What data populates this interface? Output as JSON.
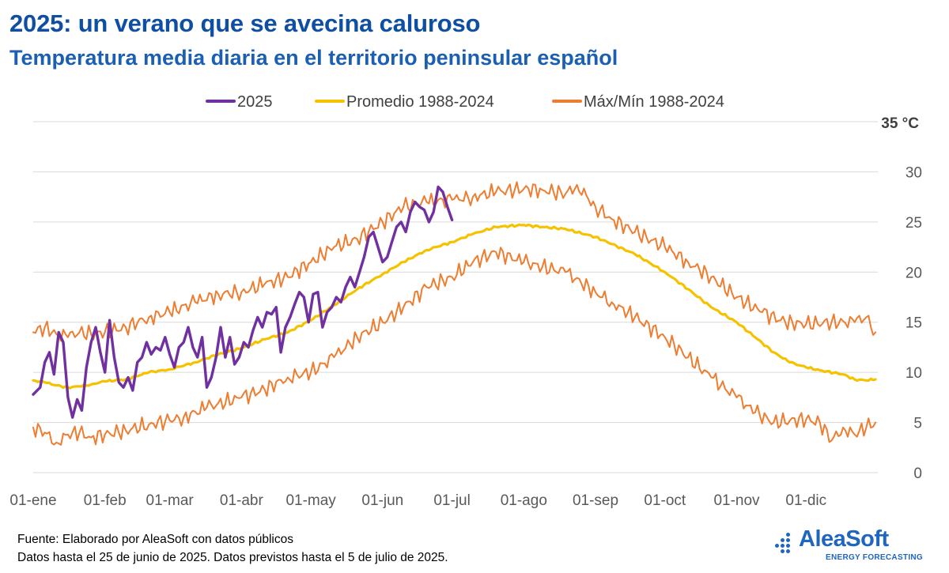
{
  "header": {
    "title": "2025: un verano que se avecina caluroso",
    "subtitle": "Temperatura media diaria en el territorio peninsular español"
  },
  "chart_data": {
    "type": "line",
    "unit_label": "35  °C",
    "ylim": [
      0,
      35
    ],
    "yticks": [
      "0",
      "5",
      "10",
      "15",
      "20",
      "25",
      "30"
    ],
    "x_range_days": [
      0,
      365
    ],
    "x_ticks": [
      {
        "day": 0,
        "label": "01-ene"
      },
      {
        "day": 31,
        "label": "01-feb"
      },
      {
        "day": 59,
        "label": "01-mar"
      },
      {
        "day": 90,
        "label": "01-abr"
      },
      {
        "day": 120,
        "label": "01-may"
      },
      {
        "day": 151,
        "label": "01-jun"
      },
      {
        "day": 181,
        "label": "01-jul"
      },
      {
        "day": 212,
        "label": "01-ago"
      },
      {
        "day": 243,
        "label": "01-sep"
      },
      {
        "day": 273,
        "label": "01-oct"
      },
      {
        "day": 304,
        "label": "01-nov"
      },
      {
        "day": 334,
        "label": "01-dic"
      }
    ],
    "grid": true,
    "legend_position": "top",
    "series": [
      {
        "name": "2025",
        "color": "#7030a0",
        "points": [
          [
            0,
            7.8
          ],
          [
            3,
            8.5
          ],
          [
            5,
            11
          ],
          [
            7,
            12
          ],
          [
            9,
            9.8
          ],
          [
            11,
            14
          ],
          [
            13,
            13
          ],
          [
            15,
            7.5
          ],
          [
            17,
            5.5
          ],
          [
            19,
            7.3
          ],
          [
            21,
            6.2
          ],
          [
            23,
            10.5
          ],
          [
            25,
            13
          ],
          [
            27,
            14.5
          ],
          [
            29,
            12
          ],
          [
            31,
            10
          ],
          [
            33,
            15.2
          ],
          [
            35,
            11.5
          ],
          [
            37,
            9
          ],
          [
            39,
            8.5
          ],
          [
            41,
            9.5
          ],
          [
            43,
            8.2
          ],
          [
            45,
            11
          ],
          [
            47,
            11.5
          ],
          [
            49,
            13
          ],
          [
            51,
            11.8
          ],
          [
            53,
            12.5
          ],
          [
            55,
            12.2
          ],
          [
            57,
            13.5
          ],
          [
            59,
            11.8
          ],
          [
            61,
            10.5
          ],
          [
            63,
            12.5
          ],
          [
            65,
            13
          ],
          [
            67,
            14.5
          ],
          [
            69,
            12.5
          ],
          [
            71,
            11.5
          ],
          [
            73,
            13.5
          ],
          [
            75,
            8.5
          ],
          [
            77,
            9.5
          ],
          [
            79,
            11.5
          ],
          [
            81,
            14.5
          ],
          [
            83,
            11.5
          ],
          [
            85,
            13.5
          ],
          [
            87,
            10.8
          ],
          [
            89,
            11.5
          ],
          [
            91,
            13
          ],
          [
            93,
            12.5
          ],
          [
            95,
            14.2
          ],
          [
            97,
            15.5
          ],
          [
            99,
            14.5
          ],
          [
            101,
            16
          ],
          [
            103,
            15.8
          ],
          [
            105,
            16.5
          ],
          [
            107,
            12
          ],
          [
            109,
            14.5
          ],
          [
            111,
            15.5
          ],
          [
            113,
            16.8
          ],
          [
            115,
            18
          ],
          [
            117,
            17.5
          ],
          [
            119,
            15
          ],
          [
            121,
            17.8
          ],
          [
            123,
            18
          ],
          [
            125,
            14.5
          ],
          [
            127,
            16
          ],
          [
            129,
            16.5
          ],
          [
            131,
            17.5
          ],
          [
            133,
            17
          ],
          [
            135,
            18.5
          ],
          [
            137,
            19.5
          ],
          [
            139,
            18.5
          ],
          [
            141,
            20
          ],
          [
            143,
            21.5
          ],
          [
            145,
            23.5
          ],
          [
            147,
            24
          ],
          [
            149,
            22.5
          ],
          [
            151,
            21
          ],
          [
            153,
            21.5
          ],
          [
            155,
            23
          ],
          [
            157,
            24.5
          ],
          [
            159,
            25
          ],
          [
            161,
            24
          ],
          [
            163,
            26
          ],
          [
            165,
            27
          ],
          [
            167,
            26.5
          ],
          [
            169,
            26.2
          ],
          [
            171,
            25
          ],
          [
            173,
            26
          ],
          [
            175,
            28.5
          ],
          [
            177,
            28
          ],
          [
            179,
            26.5
          ],
          [
            181,
            25.2
          ]
        ]
      },
      {
        "name": "Promedio 1988-2024",
        "color": "#f5c200",
        "points": [
          [
            0,
            9.2
          ],
          [
            5,
            9
          ],
          [
            10,
            8.7
          ],
          [
            15,
            8.5
          ],
          [
            20,
            8.6
          ],
          [
            25,
            8.8
          ],
          [
            31,
            9.1
          ],
          [
            40,
            9.3
          ],
          [
            50,
            10
          ],
          [
            59,
            10.3
          ],
          [
            70,
            11
          ],
          [
            80,
            11.8
          ],
          [
            90,
            12.4
          ],
          [
            100,
            13.3
          ],
          [
            110,
            14
          ],
          [
            120,
            15.2
          ],
          [
            130,
            16.7
          ],
          [
            140,
            18.3
          ],
          [
            151,
            19.8
          ],
          [
            160,
            21
          ],
          [
            170,
            22.2
          ],
          [
            181,
            23
          ],
          [
            190,
            23.8
          ],
          [
            200,
            24.5
          ],
          [
            212,
            24.7
          ],
          [
            220,
            24.5
          ],
          [
            230,
            24.3
          ],
          [
            243,
            23.5
          ],
          [
            250,
            22.8
          ],
          [
            260,
            21.8
          ],
          [
            273,
            20
          ],
          [
            283,
            18.3
          ],
          [
            293,
            16.5
          ],
          [
            304,
            15
          ],
          [
            312,
            13.5
          ],
          [
            320,
            12
          ],
          [
            327,
            11
          ],
          [
            334,
            10.5
          ],
          [
            340,
            10.2
          ],
          [
            350,
            9.8
          ],
          [
            355,
            9.3
          ],
          [
            360,
            9.2
          ],
          [
            364,
            9.3
          ]
        ]
      },
      {
        "name": "Máx/Mín 1988-2024",
        "color": "#ed7d31",
        "points": [
          [
            0,
            14
          ],
          [
            5,
            14.5
          ],
          [
            10,
            13.8
          ],
          [
            15,
            13.5
          ],
          [
            20,
            14
          ],
          [
            25,
            13.8
          ],
          [
            31,
            14
          ],
          [
            40,
            14.5
          ],
          [
            50,
            15.5
          ],
          [
            59,
            16
          ],
          [
            70,
            17
          ],
          [
            80,
            17.8
          ],
          [
            90,
            18
          ],
          [
            100,
            18.8
          ],
          [
            110,
            19.5
          ],
          [
            120,
            21
          ],
          [
            130,
            22.5
          ],
          [
            140,
            23.3
          ],
          [
            151,
            25
          ],
          [
            160,
            26.5
          ],
          [
            170,
            27
          ],
          [
            181,
            27.2
          ],
          [
            190,
            27.5
          ],
          [
            200,
            28
          ],
          [
            212,
            28.3
          ],
          [
            220,
            28.2
          ],
          [
            230,
            27.8
          ],
          [
            235,
            28.7
          ],
          [
            243,
            26.5
          ],
          [
            250,
            25.3
          ],
          [
            260,
            24
          ],
          [
            273,
            22.5
          ],
          [
            283,
            21
          ],
          [
            293,
            19.5
          ],
          [
            304,
            17.5
          ],
          [
            315,
            16
          ],
          [
            325,
            15
          ],
          [
            334,
            14.8
          ],
          [
            345,
            15
          ],
          [
            355,
            15
          ],
          [
            360,
            15.5
          ],
          [
            364,
            14
          ]
        ]
      },
      {
        "name": "Mín",
        "color": "#ed7d31",
        "points": [
          [
            0,
            4.5
          ],
          [
            5,
            4
          ],
          [
            10,
            3
          ],
          [
            15,
            3.8
          ],
          [
            20,
            4
          ],
          [
            25,
            3.5
          ],
          [
            31,
            3.8
          ],
          [
            40,
            4.2
          ],
          [
            50,
            4.8
          ],
          [
            59,
            5.2
          ],
          [
            65,
            5.5
          ],
          [
            75,
            6.5
          ],
          [
            90,
            7.5
          ],
          [
            100,
            8.3
          ],
          [
            110,
            9.5
          ],
          [
            120,
            10
          ],
          [
            130,
            11.5
          ],
          [
            140,
            13.5
          ],
          [
            151,
            15
          ],
          [
            160,
            16.5
          ],
          [
            170,
            18.5
          ],
          [
            181,
            19.5
          ],
          [
            190,
            21
          ],
          [
            200,
            22
          ],
          [
            212,
            21
          ],
          [
            220,
            20.5
          ],
          [
            230,
            20
          ],
          [
            243,
            18
          ],
          [
            250,
            17
          ],
          [
            260,
            15.5
          ],
          [
            273,
            13.5
          ],
          [
            283,
            11.5
          ],
          [
            293,
            9.5
          ],
          [
            304,
            7.5
          ],
          [
            312,
            6
          ],
          [
            320,
            5
          ],
          [
            327,
            5.2
          ],
          [
            334,
            5.3
          ],
          [
            340,
            5
          ],
          [
            345,
            3.2
          ],
          [
            350,
            4.5
          ],
          [
            355,
            3.8
          ],
          [
            360,
            4.5
          ],
          [
            364,
            5
          ]
        ]
      }
    ]
  },
  "footer": {
    "source": "Fuente: Elaborado por AleaSoft con datos públicos",
    "notes": "Datos hasta el 25 de junio de 2025. Datos previstos hasta el 5 de julio de 2025."
  },
  "logo": {
    "name": "AleaSoft",
    "tagline": "ENERGY FORECASTING",
    "color": "#1f66c1"
  }
}
